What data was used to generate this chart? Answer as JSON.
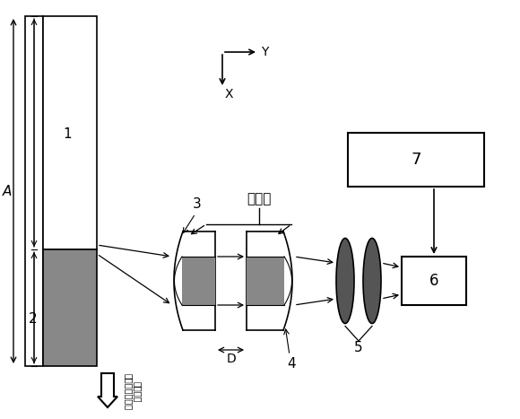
{
  "bg_color": "#ffffff",
  "dark_gray": "#888888",
  "black": "#000000",
  "white": "#ffffff",
  "label_A": "A",
  "label_1": "1",
  "label_2": "2",
  "label_3": "3",
  "label_4": "4",
  "label_5": "5",
  "label_6": "6",
  "label_7": "7",
  "label_D": "D",
  "label_Y": "Y",
  "label_X": "X",
  "label_modlight": "调制光",
  "label_laser_line1": "量子级联激光器",
  "label_laser_line2": "激光输出",
  "fig_width": 5.8,
  "fig_height": 4.67,
  "dpi": 100
}
